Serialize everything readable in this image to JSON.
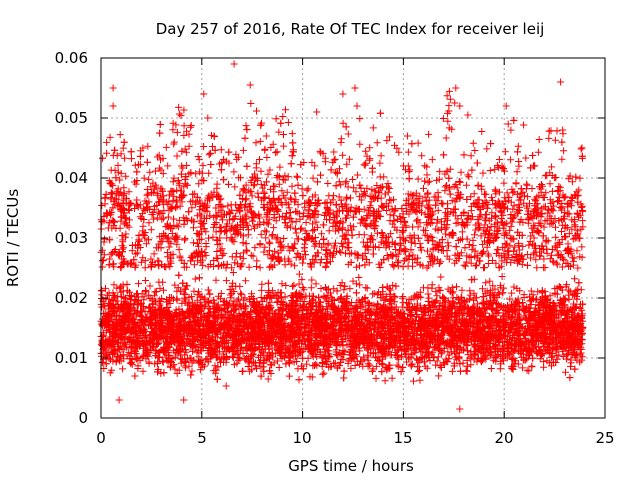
{
  "chart_data": {
    "type": "scatter",
    "title": "Day 257 of 2016, Rate Of TEC Index for receiver leij",
    "xlabel": "GPS time / hours",
    "ylabel": "ROTI / TECUs",
    "xlim": [
      0,
      25
    ],
    "ylim": [
      0,
      0.06
    ],
    "x_ticks": [
      "0",
      "5",
      "10",
      "15",
      "20",
      "25"
    ],
    "y_ticks": [
      "0",
      "0.01",
      "0.02",
      "0.03",
      "0.04",
      "0.05",
      "0.06"
    ],
    "grid": true,
    "marker": "+",
    "color": "#ff0000",
    "series": [
      {
        "name": "ROTI",
        "x_range_hours": [
          0,
          23.9
        ],
        "typical_range": [
          0.005,
          0.025
        ],
        "peak_points": [
          [
            0.6,
            0.055
          ],
          [
            0.6,
            0.052
          ],
          [
            2.8,
            0.0435
          ],
          [
            4.0,
            0.042
          ],
          [
            5.1,
            0.054
          ],
          [
            5.3,
            0.05
          ],
          [
            6.6,
            0.059
          ],
          [
            7.4,
            0.0555
          ],
          [
            8.2,
            0.047
          ],
          [
            10.7,
            0.051
          ],
          [
            12.0,
            0.054
          ],
          [
            12.6,
            0.055
          ],
          [
            12.7,
            0.052
          ],
          [
            15.2,
            0.047
          ],
          [
            17.6,
            0.055
          ],
          [
            17.8,
            0.052
          ],
          [
            18.2,
            0.0505
          ],
          [
            20.1,
            0.052
          ],
          [
            20.2,
            0.049
          ],
          [
            22.8,
            0.056
          ],
          [
            22.9,
            0.048
          ],
          [
            23.7,
            0.038
          ],
          [
            17.8,
            0.0015
          ],
          [
            4.1,
            0.003
          ],
          [
            0.9,
            0.003
          ]
        ]
      }
    ]
  }
}
